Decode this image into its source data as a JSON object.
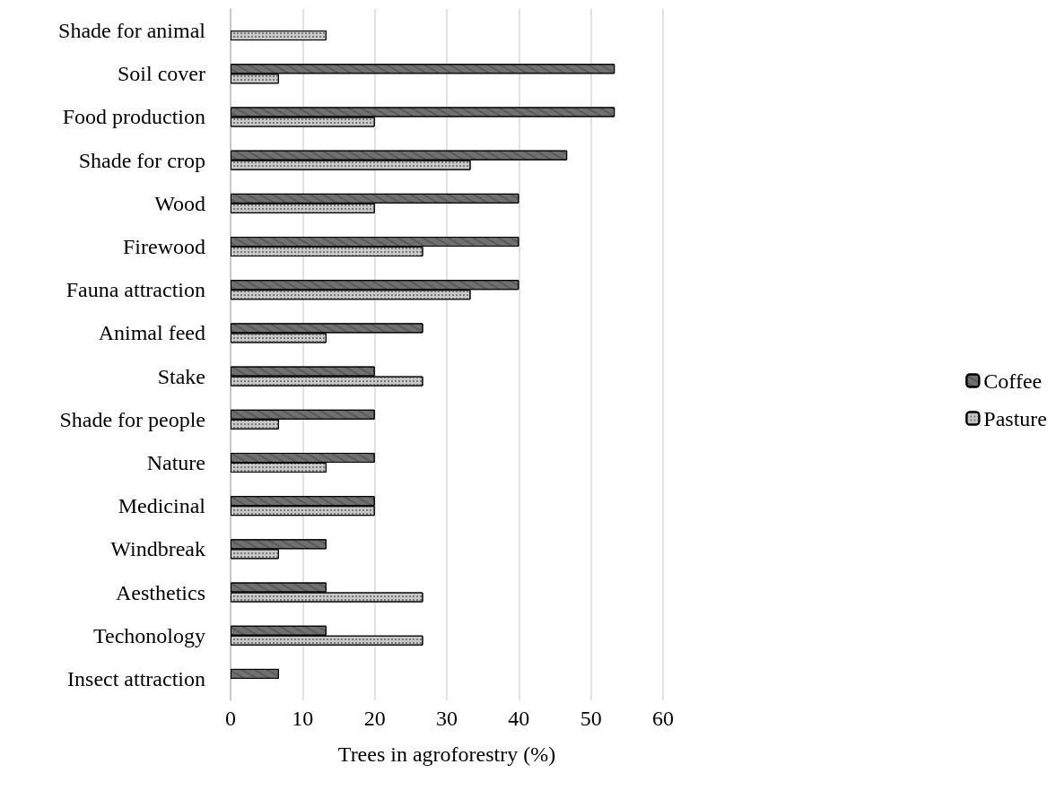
{
  "chart_data": {
    "type": "bar",
    "orientation": "horizontal",
    "xlabel": "Trees in agroforestry (%)",
    "categories": [
      "Shade for animal",
      "Soil cover",
      "Food production",
      "Shade for crop",
      "Wood",
      "Firewood",
      "Fauna attraction",
      "Animal feed",
      "Stake",
      "Shade for people",
      "Nature",
      "Medicinal",
      "Windbreak",
      "Aesthetics",
      "Techonology",
      "Insect attraction"
    ],
    "series": [
      {
        "name": "Coffee",
        "color": "#707070",
        "values": [
          null,
          53.3,
          53.3,
          46.7,
          40,
          40,
          40,
          26.7,
          20,
          20,
          20,
          20,
          13.3,
          13.3,
          13.3,
          6.7
        ]
      },
      {
        "name": "Pasture",
        "color": "#c8c8c8",
        "values": [
          13.3,
          6.7,
          20,
          33.3,
          20,
          26.7,
          33.3,
          13.3,
          26.7,
          6.7,
          13.3,
          20,
          6.7,
          26.7,
          26.7,
          null
        ]
      }
    ],
    "xlim": [
      0,
      60
    ],
    "xticks": [
      0,
      10,
      20,
      30,
      40,
      50,
      60
    ],
    "grid": "x",
    "legend": "right"
  }
}
